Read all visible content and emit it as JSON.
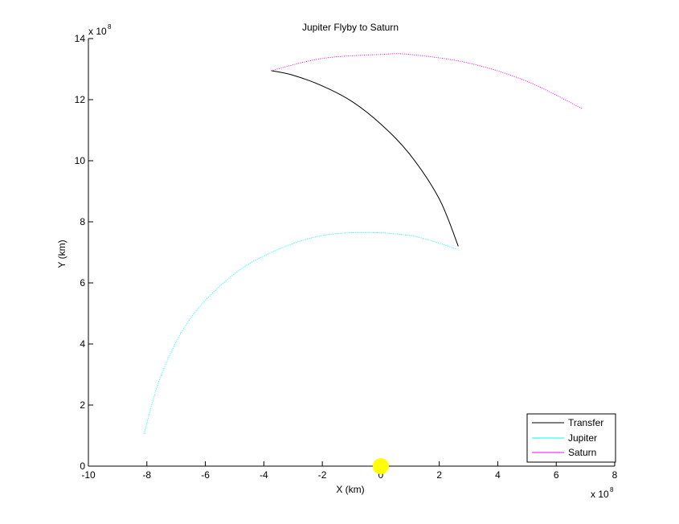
{
  "chart_data": {
    "type": "line",
    "title": "Jupiter Flyby to Saturn",
    "xlabel": "X (km)",
    "ylabel": "Y (km)",
    "x_exponent_label": "x 10",
    "x_exponent": "8",
    "y_exponent_label": "x 10",
    "y_exponent": "8",
    "xlim": [
      -10,
      8
    ],
    "ylim": [
      0,
      14
    ],
    "x_ticks": [
      "-10",
      "-8",
      "-6",
      "-4",
      "-2",
      "0",
      "2",
      "4",
      "6",
      "8"
    ],
    "y_ticks": [
      "0",
      "2",
      "4",
      "6",
      "8",
      "10",
      "12",
      "14"
    ],
    "grid": false,
    "legend_position": "bottom-right",
    "series": [
      {
        "name": "Transfer",
        "color": "#000000",
        "style": "solid",
        "x": [
          -3.75,
          -3.0,
          -2.0,
          -1.0,
          0.0,
          1.0,
          2.0,
          2.65
        ],
        "y": [
          12.95,
          12.8,
          12.45,
          11.95,
          11.2,
          10.2,
          8.75,
          7.2
        ]
      },
      {
        "name": "Jupiter",
        "color": "#00ffff",
        "style": "dotted",
        "x": [
          -8.1,
          -7.5,
          -6.5,
          -5.0,
          -3.5,
          -2.0,
          -0.4,
          1.0,
          2.0,
          2.6
        ],
        "y": [
          1.05,
          3.0,
          4.85,
          6.3,
          7.1,
          7.55,
          7.65,
          7.55,
          7.3,
          7.1
        ]
      },
      {
        "name": "Saturn",
        "color": "#ff00ff",
        "style": "dotted",
        "x": [
          -3.75,
          -2.0,
          0.0,
          1.0,
          3.0,
          5.0,
          6.9
        ],
        "y": [
          12.95,
          13.35,
          13.48,
          13.48,
          13.2,
          12.6,
          11.7
        ]
      }
    ],
    "sun_marker": {
      "x": 0.0,
      "y": 0.0,
      "color": "#ffff00"
    }
  }
}
